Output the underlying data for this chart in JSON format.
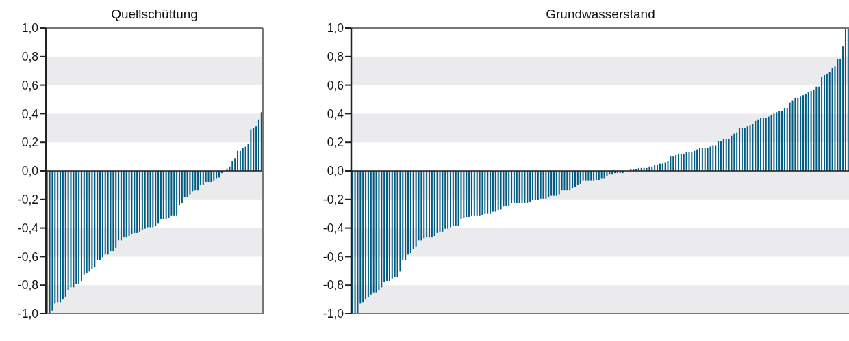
{
  "chart_data": [
    {
      "type": "bar",
      "title": "Quellschüttung",
      "color": "#005b82",
      "tick_labels": "y",
      "grid": false,
      "legend": false,
      "categories": [
        null,
        null,
        null,
        null,
        null,
        null,
        null,
        null,
        null,
        null,
        null,
        null,
        null,
        null,
        null,
        null,
        null,
        null,
        null,
        null,
        null,
        null,
        null,
        null,
        null,
        null,
        null,
        null,
        null,
        null,
        null,
        null,
        null,
        null,
        null,
        null,
        null,
        null,
        null,
        null,
        null,
        null,
        null,
        null,
        null,
        null,
        null,
        null,
        null,
        null,
        null,
        null,
        null,
        null,
        null,
        null,
        null,
        null,
        null,
        null,
        null,
        null,
        null,
        null,
        null,
        null,
        null,
        null,
        null,
        null,
        null,
        null,
        null,
        null,
        null,
        null,
        null,
        null,
        null,
        null,
        null,
        null
      ],
      "values": [
        -1.0,
        -1.0,
        -0.98,
        -0.93,
        -0.92,
        -0.92,
        -0.9,
        -0.88,
        -0.835,
        -0.815,
        -0.815,
        -0.79,
        -0.79,
        -0.77,
        -0.725,
        -0.715,
        -0.705,
        -0.685,
        -0.675,
        -0.625,
        -0.625,
        -0.605,
        -0.585,
        -0.585,
        -0.565,
        -0.565,
        -0.54,
        -0.485,
        -0.485,
        -0.465,
        -0.465,
        -0.455,
        -0.445,
        -0.435,
        -0.435,
        -0.425,
        -0.415,
        -0.405,
        -0.395,
        -0.395,
        -0.395,
        -0.385,
        -0.37,
        -0.34,
        -0.34,
        -0.34,
        -0.33,
        -0.315,
        -0.315,
        -0.315,
        -0.24,
        -0.225,
        -0.185,
        -0.185,
        -0.165,
        -0.145,
        -0.135,
        -0.135,
        -0.1,
        -0.1,
        -0.08,
        -0.08,
        -0.08,
        -0.07,
        -0.055,
        -0.045,
        -0.015,
        0,
        0.015,
        0.03,
        0.07,
        0.09,
        0.14,
        0.14,
        0.16,
        0.17,
        0.19,
        0.29,
        0.3,
        0.31,
        0.36,
        0.41
      ],
      "ylim": [
        -1,
        1
      ],
      "yticks": [
        {
          "value": -1,
          "label": "-1,0"
        },
        {
          "value": -0.8,
          "label": "-0,8"
        },
        {
          "value": -0.6,
          "label": "-0,6"
        },
        {
          "value": -0.4,
          "label": "-0,4"
        },
        {
          "value": -0.2,
          "label": "-0,2"
        },
        {
          "value": 0,
          "label": "0,0"
        },
        {
          "value": 0.2,
          "label": "0,2"
        },
        {
          "value": 0.4,
          "label": "0,4"
        },
        {
          "value": 0.6,
          "label": "0,6"
        },
        {
          "value": 0.8,
          "label": "0,8"
        },
        {
          "value": 1,
          "label": "1,0"
        }
      ],
      "bands": [
        {
          "axis": "y",
          "from": 0.6,
          "to": 0.8,
          "color": "#ebebed"
        },
        {
          "axis": "y",
          "from": 0.2,
          "to": 0.4,
          "color": "#ebebed"
        },
        {
          "axis": "y",
          "from": -0.2,
          "to": 0,
          "color": "#ebebed"
        },
        {
          "axis": "y",
          "from": -0.6,
          "to": -0.4,
          "color": "#ebebed"
        },
        {
          "axis": "y",
          "from": -1,
          "to": -0.8,
          "color": "#ebebed"
        }
      ],
      "ref_lines": [
        {
          "axis": "y",
          "value": 0,
          "color": "#1a1a1a"
        }
      ]
    },
    {
      "type": "bar",
      "title": "Grundwasserstand",
      "color": "#005b82",
      "tick_labels": "y",
      "grid": false,
      "legend": false,
      "categories": [
        null,
        null,
        null,
        null,
        null,
        null,
        null,
        null,
        null,
        null,
        null,
        null,
        null,
        null,
        null,
        null,
        null,
        null,
        null,
        null,
        null,
        null,
        null,
        null,
        null,
        null,
        null,
        null,
        null,
        null,
        null,
        null,
        null,
        null,
        null,
        null,
        null,
        null,
        null,
        null,
        null,
        null,
        null,
        null,
        null,
        null,
        null,
        null,
        null,
        null,
        null,
        null,
        null,
        null,
        null,
        null,
        null,
        null,
        null,
        null,
        null,
        null,
        null,
        null,
        null,
        null,
        null,
        null,
        null,
        null,
        null,
        null,
        null,
        null,
        null,
        null,
        null,
        null,
        null,
        null,
        null,
        null,
        null,
        null,
        null,
        null,
        null,
        null,
        null,
        null,
        null,
        null,
        null,
        null,
        null,
        null,
        null,
        null,
        null,
        null,
        null,
        null,
        null,
        null,
        null,
        null,
        null,
        null,
        null,
        null,
        null,
        null,
        null,
        null,
        null,
        null,
        null,
        null,
        null,
        null,
        null,
        null,
        null,
        null,
        null,
        null,
        null,
        null,
        null,
        null,
        null,
        null,
        null,
        null,
        null,
        null,
        null,
        null,
        null,
        null,
        null,
        null,
        null,
        null,
        null,
        null,
        null,
        null,
        null,
        null,
        null,
        null,
        null,
        null,
        null,
        null,
        null,
        null,
        null,
        null,
        null,
        null,
        null,
        null,
        null,
        null,
        null,
        null,
        null,
        null,
        null,
        null,
        null,
        null,
        null,
        null,
        null,
        null,
        null,
        null,
        null,
        null,
        null,
        null,
        null,
        null,
        null,
        null
      ],
      "values": [
        -1,
        -1,
        -1,
        -0.93,
        -0.92,
        -0.9,
        -0.885,
        -0.865,
        -0.855,
        -0.855,
        -0.835,
        -0.815,
        -0.775,
        -0.77,
        -0.77,
        -0.755,
        -0.745,
        -0.745,
        -0.705,
        -0.625,
        -0.625,
        -0.585,
        -0.575,
        -0.55,
        -0.53,
        -0.485,
        -0.485,
        -0.475,
        -0.465,
        -0.465,
        -0.465,
        -0.455,
        -0.435,
        -0.425,
        -0.425,
        -0.405,
        -0.405,
        -0.395,
        -0.385,
        -0.385,
        -0.385,
        -0.34,
        -0.33,
        -0.325,
        -0.325,
        -0.315,
        -0.315,
        -0.315,
        -0.315,
        -0.31,
        -0.3,
        -0.3,
        -0.3,
        -0.285,
        -0.285,
        -0.275,
        -0.27,
        -0.25,
        -0.245,
        -0.245,
        -0.225,
        -0.225,
        -0.225,
        -0.225,
        -0.225,
        -0.225,
        -0.225,
        -0.215,
        -0.205,
        -0.205,
        -0.205,
        -0.195,
        -0.195,
        -0.195,
        -0.185,
        -0.175,
        -0.175,
        -0.175,
        -0.165,
        -0.135,
        -0.135,
        -0.135,
        -0.135,
        -0.12,
        -0.11,
        -0.1,
        -0.09,
        -0.07,
        -0.07,
        -0.07,
        -0.07,
        -0.07,
        -0.065,
        -0.065,
        -0.055,
        -0.055,
        -0.035,
        -0.025,
        -0.025,
        -0.015,
        -0.015,
        -0.015,
        -0.015,
        0,
        0,
        0.01,
        0.01,
        0.01,
        0.02,
        0.02,
        0.02,
        0.02,
        0.03,
        0.03,
        0.04,
        0.04,
        0.05,
        0.05,
        0.06,
        0.07,
        0.1,
        0.1,
        0.11,
        0.12,
        0.12,
        0.12,
        0.13,
        0.13,
        0.13,
        0.14,
        0.15,
        0.16,
        0.16,
        0.16,
        0.16,
        0.17,
        0.18,
        0.18,
        0.21,
        0.21,
        0.225,
        0.225,
        0.225,
        0.245,
        0.26,
        0.27,
        0.3,
        0.3,
        0.3,
        0.31,
        0.32,
        0.33,
        0.35,
        0.36,
        0.37,
        0.37,
        0.37,
        0.38,
        0.39,
        0.4,
        0.41,
        0.42,
        0.42,
        0.44,
        0.44,
        0.48,
        0.49,
        0.51,
        0.51,
        0.52,
        0.53,
        0.54,
        0.55,
        0.56,
        0.57,
        0.59,
        0.59,
        0.66,
        0.67,
        0.68,
        0.69,
        0.72,
        0.73,
        0.78,
        0.78,
        0.87,
        1.0,
        1.0
      ],
      "ylim": [
        -1,
        1
      ],
      "yticks": [
        {
          "value": -1,
          "label": "-1,0"
        },
        {
          "value": -0.8,
          "label": "-0,8"
        },
        {
          "value": -0.6,
          "label": "-0,6"
        },
        {
          "value": -0.4,
          "label": "-0,4"
        },
        {
          "value": -0.2,
          "label": "-0,2"
        },
        {
          "value": 0,
          "label": "0,0"
        },
        {
          "value": 0.2,
          "label": "0,2"
        },
        {
          "value": 0.4,
          "label": "0,4"
        },
        {
          "value": 0.6,
          "label": "0,6"
        },
        {
          "value": 0.8,
          "label": "0,8"
        },
        {
          "value": 1,
          "label": "1,0"
        }
      ],
      "bands": [
        {
          "axis": "y",
          "from": 0.6,
          "to": 0.8,
          "color": "#ebebed"
        },
        {
          "axis": "y",
          "from": 0.2,
          "to": 0.4,
          "color": "#ebebed"
        },
        {
          "axis": "y",
          "from": -0.2,
          "to": 0,
          "color": "#ebebed"
        },
        {
          "axis": "y",
          "from": -0.6,
          "to": -0.4,
          "color": "#ebebed"
        },
        {
          "axis": "y",
          "from": -1,
          "to": -0.8,
          "color": "#ebebed"
        }
      ],
      "ref_lines": [
        {
          "axis": "y",
          "value": 0,
          "color": "#1a1a1a"
        }
      ]
    }
  ]
}
